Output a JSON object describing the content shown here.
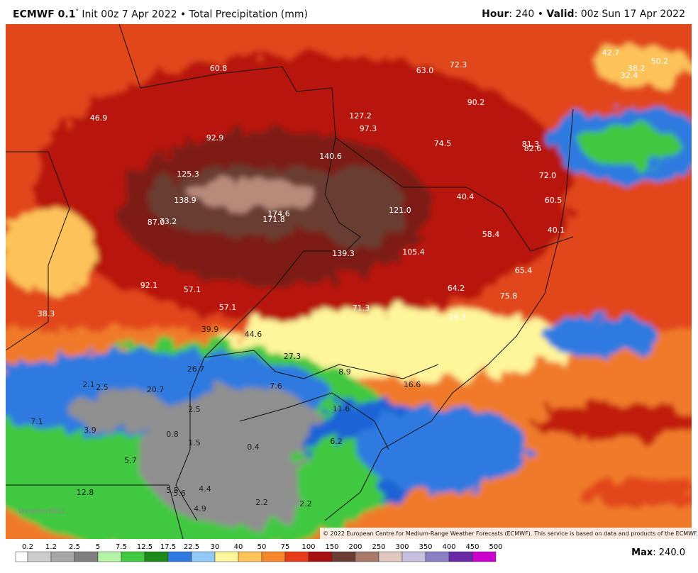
{
  "header": {
    "model": "ECMWF 0.1",
    "degree": "°",
    "init": " Init 00z 7 Apr 2022 • Total Precipitation (mm)",
    "hour_key": "Hour",
    "hour_val": ": 240 • ",
    "valid_key": "Valid",
    "valid_val": ": 00z Sun 17 Apr 2022"
  },
  "map": {
    "labels": [
      "60.8",
      "63.0",
      "72.3",
      "42.7",
      "50.2",
      "38.2",
      "32.4",
      "46.9",
      "127.2",
      "97.3",
      "90.2",
      "92.9",
      "140.6",
      "74.5",
      "81.3",
      "82.6",
      "125.3",
      "72.0",
      "40.4",
      "138.9",
      "121.0",
      "60.5",
      "174.6",
      "171.8",
      "87.0",
      "73.2",
      "58.4",
      "40.1",
      "139.3",
      "105.4",
      "65.4",
      "92.1",
      "57.1",
      "64.2",
      "75.8",
      "57.1",
      "71.3",
      "38.3",
      "29.3",
      "39.9",
      "44.6",
      "27.3",
      "26.7",
      "8.9",
      "2.1",
      "2.5",
      "20.7",
      "7.6",
      "16.6",
      "11.6",
      "2.5",
      "7.1",
      "3.9",
      "0.8",
      "1.5",
      "0.4",
      "6.2",
      "5.7",
      "5.5",
      "5.6",
      "4.4",
      "12.8",
      "4.9",
      "2.2",
      "2.2"
    ],
    "copyright": "© 2022 European Centre for Medium-Range Weather Forecasts (ECMWF). This service is based on data and products of the ECMWF.",
    "watermark": "WeatherBELL"
  },
  "colorbar": {
    "ticks": [
      0.2,
      1.2,
      2.5,
      5,
      7.5,
      12.5,
      17.5,
      22.5,
      30,
      40,
      50,
      75,
      100,
      150,
      200,
      250,
      300,
      350,
      400,
      450,
      500
    ],
    "colors": [
      "#ffffff",
      "#cccccc",
      "#a6a6a6",
      "#7f7f7f",
      "#b4f5a8",
      "#40c840",
      "#1a8a1a",
      "#2f7ae0",
      "#8fcafa",
      "#fff59a",
      "#fdc35a",
      "#f8862a",
      "#e63a18",
      "#a50f0f",
      "#6b3d33",
      "#a97a6a",
      "#e0c8c0",
      "#c7c0e0",
      "#8b7fc8",
      "#6a2aa8",
      "#cc00cc"
    ]
  },
  "footer": {
    "max_key": "Max",
    "max_val": ": 240.0"
  }
}
